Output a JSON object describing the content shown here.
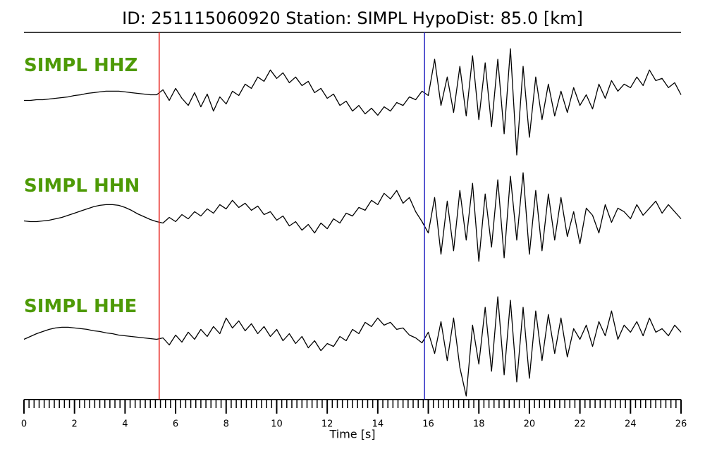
{
  "chart_data": {
    "type": "seismogram",
    "title": "ID: 251115060920   Station: SIMPL   HypoDist:    85.0 [km]",
    "xlabel": "Time [s]",
    "xlim": [
      0,
      26
    ],
    "xticks": [
      0,
      2,
      4,
      6,
      8,
      10,
      12,
      14,
      16,
      18,
      20,
      22,
      24,
      26
    ],
    "minor_xtick_step": 0.2,
    "ylim": [
      -85,
      85
    ],
    "label_color": "#4e9a06",
    "markers": [
      {
        "x": 5.35,
        "color": "#e8231c"
      },
      {
        "x": 15.85,
        "color": "#2b2bc4"
      }
    ],
    "x": [
      0,
      0.25,
      0.5,
      0.75,
      1,
      1.25,
      1.5,
      1.75,
      2,
      2.25,
      2.5,
      2.75,
      3,
      3.25,
      3.5,
      3.75,
      4,
      4.25,
      4.5,
      4.75,
      5,
      5.25,
      5.5,
      5.75,
      6,
      6.25,
      6.5,
      6.75,
      7,
      7.25,
      7.5,
      7.75,
      8,
      8.25,
      8.5,
      8.75,
      9,
      9.25,
      9.5,
      9.75,
      10,
      10.25,
      10.5,
      10.75,
      11,
      11.25,
      11.5,
      11.75,
      12,
      12.25,
      12.5,
      12.75,
      13,
      13.25,
      13.5,
      13.75,
      14,
      14.25,
      14.5,
      14.75,
      15,
      15.25,
      15.5,
      15.75,
      16,
      16.25,
      16.5,
      16.75,
      17,
      17.25,
      17.5,
      17.75,
      18,
      18.25,
      18.5,
      18.75,
      19,
      19.25,
      19.5,
      19.75,
      20,
      20.25,
      20.5,
      20.75,
      21,
      21.25,
      21.5,
      21.75,
      22,
      22.25,
      22.5,
      22.75,
      23,
      23.25,
      23.5,
      23.75,
      24,
      24.25,
      24.5,
      24.75,
      25,
      25.25,
      25.5,
      25.75,
      26
    ],
    "series": [
      {
        "name": "SIMPL HHZ",
        "color": "#000000",
        "values": [
          -3,
          -3,
          -2,
          -2,
          -1,
          0,
          1,
          2,
          4,
          5,
          7,
          8,
          9,
          10,
          10,
          10,
          9,
          8,
          7,
          6,
          5,
          5,
          12,
          -3,
          14,
          0,
          -10,
          8,
          -12,
          6,
          -18,
          2,
          -8,
          10,
          4,
          20,
          14,
          30,
          24,
          40,
          28,
          36,
          22,
          30,
          18,
          24,
          8,
          14,
          0,
          6,
          -10,
          -4,
          -18,
          -10,
          -22,
          -14,
          -24,
          -12,
          -18,
          -6,
          -10,
          2,
          -2,
          10,
          4,
          55,
          -10,
          30,
          -20,
          45,
          -25,
          60,
          -30,
          50,
          -40,
          55,
          -50,
          70,
          -80,
          45,
          -55,
          30,
          -30,
          20,
          -25,
          10,
          -20,
          15,
          -10,
          5,
          -15,
          20,
          0,
          25,
          10,
          20,
          15,
          30,
          18,
          40,
          25,
          28,
          15,
          22,
          5
        ]
      },
      {
        "name": "SIMPL HHN",
        "color": "#000000",
        "values": [
          -3,
          -4,
          -4,
          -3,
          -2,
          0,
          2,
          5,
          8,
          11,
          14,
          17,
          19,
          20,
          20,
          19,
          16,
          12,
          7,
          3,
          -1,
          -4,
          -6,
          2,
          -4,
          6,
          0,
          10,
          4,
          14,
          8,
          20,
          14,
          26,
          16,
          22,
          12,
          18,
          6,
          10,
          -2,
          4,
          -10,
          -4,
          -16,
          -8,
          -20,
          -6,
          -14,
          0,
          -6,
          8,
          4,
          16,
          12,
          26,
          20,
          36,
          28,
          40,
          22,
          30,
          10,
          -4,
          -20,
          30,
          -50,
          25,
          -45,
          40,
          -30,
          50,
          -60,
          35,
          -40,
          55,
          -55,
          60,
          -30,
          65,
          -50,
          40,
          -45,
          35,
          -30,
          30,
          -25,
          10,
          -35,
          15,
          5,
          -20,
          20,
          -5,
          15,
          10,
          0,
          20,
          5,
          15,
          25,
          8,
          20,
          10,
          0
        ]
      },
      {
        "name": "SIMPL HHE",
        "color": "#000000",
        "values": [
          0,
          4,
          8,
          11,
          14,
          16,
          17,
          17,
          16,
          15,
          14,
          12,
          11,
          9,
          8,
          6,
          5,
          4,
          3,
          2,
          1,
          0,
          2,
          -8,
          6,
          -4,
          10,
          0,
          14,
          4,
          18,
          8,
          30,
          16,
          26,
          12,
          22,
          8,
          18,
          4,
          14,
          -2,
          8,
          -6,
          4,
          -12,
          -2,
          -16,
          -6,
          -10,
          4,
          -2,
          14,
          8,
          24,
          18,
          30,
          20,
          24,
          14,
          16,
          6,
          2,
          -5,
          10,
          -20,
          25,
          -30,
          30,
          -40,
          -80,
          20,
          -35,
          45,
          -45,
          60,
          -50,
          55,
          -60,
          45,
          -55,
          40,
          -30,
          35,
          -20,
          30,
          -25,
          15,
          0,
          20,
          -10,
          25,
          5,
          40,
          0,
          20,
          10,
          25,
          5,
          30,
          10,
          15,
          5,
          20,
          10
        ]
      }
    ]
  }
}
